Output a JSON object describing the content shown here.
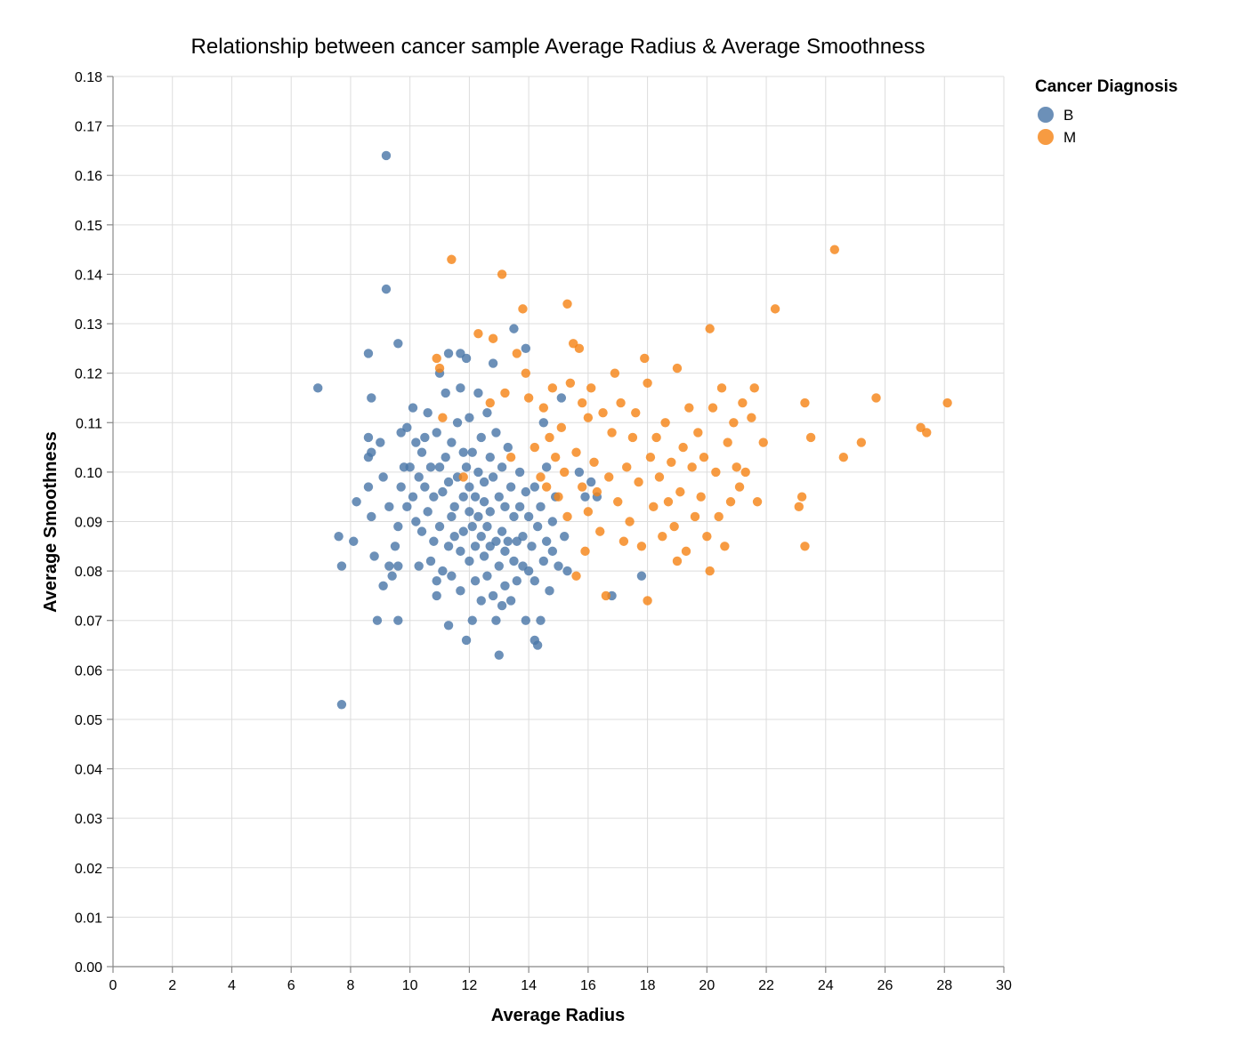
{
  "chart_data": {
    "type": "scatter",
    "title": "Relationship between cancer sample Average Radius & Average Smoothness",
    "xlabel": "Average Radius",
    "ylabel": "Average Smoothness",
    "xlim": [
      0,
      30
    ],
    "ylim": [
      0,
      0.18
    ],
    "x_ticks": [
      0,
      2,
      4,
      6,
      8,
      10,
      12,
      14,
      16,
      18,
      20,
      22,
      24,
      26,
      28,
      30
    ],
    "y_ticks": [
      0.0,
      0.01,
      0.02,
      0.03,
      0.04,
      0.05,
      0.06,
      0.07,
      0.08,
      0.09,
      0.1,
      0.11,
      0.12,
      0.13,
      0.14,
      0.15,
      0.16,
      0.17,
      0.18
    ],
    "y_tick_decimals": 2,
    "grid": true,
    "legend": {
      "title": "Cancer Diagnosis",
      "placement": "top-right"
    },
    "series": [
      {
        "name": "B",
        "color": "#4c78a8",
        "points": [
          [
            9.2,
            0.164
          ],
          [
            9.2,
            0.137
          ],
          [
            7.7,
            0.053
          ],
          [
            6.9,
            0.117
          ],
          [
            9.6,
            0.126
          ],
          [
            8.6,
            0.124
          ],
          [
            8.7,
            0.115
          ],
          [
            7.6,
            0.087
          ],
          [
            7.7,
            0.081
          ],
          [
            8.1,
            0.086
          ],
          [
            8.9,
            0.07
          ],
          [
            9.6,
            0.07
          ],
          [
            8.8,
            0.083
          ],
          [
            9.1,
            0.077
          ],
          [
            8.2,
            0.094
          ],
          [
            8.6,
            0.097
          ],
          [
            8.6,
            0.103
          ],
          [
            8.6,
            0.107
          ],
          [
            8.7,
            0.104
          ],
          [
            8.7,
            0.091
          ],
          [
            9.0,
            0.106
          ],
          [
            9.1,
            0.099
          ],
          [
            9.3,
            0.093
          ],
          [
            9.3,
            0.081
          ],
          [
            9.4,
            0.079
          ],
          [
            9.5,
            0.085
          ],
          [
            9.6,
            0.089
          ],
          [
            9.6,
            0.081
          ],
          [
            9.7,
            0.097
          ],
          [
            9.7,
            0.108
          ],
          [
            9.8,
            0.101
          ],
          [
            9.9,
            0.093
          ],
          [
            9.9,
            0.109
          ],
          [
            10.0,
            0.101
          ],
          [
            10.1,
            0.095
          ],
          [
            10.1,
            0.113
          ],
          [
            10.2,
            0.106
          ],
          [
            10.2,
            0.09
          ],
          [
            10.3,
            0.081
          ],
          [
            10.3,
            0.099
          ],
          [
            10.4,
            0.104
          ],
          [
            10.4,
            0.088
          ],
          [
            10.5,
            0.097
          ],
          [
            10.5,
            0.107
          ],
          [
            10.6,
            0.112
          ],
          [
            10.6,
            0.092
          ],
          [
            10.7,
            0.082
          ],
          [
            10.7,
            0.101
          ],
          [
            10.8,
            0.095
          ],
          [
            10.8,
            0.086
          ],
          [
            10.9,
            0.078
          ],
          [
            10.9,
            0.075
          ],
          [
            10.9,
            0.108
          ],
          [
            11.0,
            0.101
          ],
          [
            11.0,
            0.12
          ],
          [
            11.0,
            0.089
          ],
          [
            11.1,
            0.096
          ],
          [
            11.1,
            0.08
          ],
          [
            11.2,
            0.116
          ],
          [
            11.2,
            0.103
          ],
          [
            11.3,
            0.069
          ],
          [
            11.3,
            0.085
          ],
          [
            11.3,
            0.098
          ],
          [
            11.3,
            0.124
          ],
          [
            11.4,
            0.091
          ],
          [
            11.4,
            0.079
          ],
          [
            11.4,
            0.106
          ],
          [
            11.5,
            0.093
          ],
          [
            11.5,
            0.087
          ],
          [
            11.6,
            0.11
          ],
          [
            11.6,
            0.099
          ],
          [
            11.7,
            0.084
          ],
          [
            11.7,
            0.076
          ],
          [
            11.7,
            0.117
          ],
          [
            11.7,
            0.124
          ],
          [
            11.8,
            0.095
          ],
          [
            11.8,
            0.104
          ],
          [
            11.8,
            0.088
          ],
          [
            11.9,
            0.066
          ],
          [
            11.9,
            0.123
          ],
          [
            11.9,
            0.101
          ],
          [
            12.0,
            0.092
          ],
          [
            12.0,
            0.082
          ],
          [
            12.0,
            0.097
          ],
          [
            12.0,
            0.111
          ],
          [
            12.1,
            0.07
          ],
          [
            12.1,
            0.089
          ],
          [
            12.1,
            0.104
          ],
          [
            12.2,
            0.085
          ],
          [
            12.2,
            0.095
          ],
          [
            12.2,
            0.078
          ],
          [
            12.3,
            0.116
          ],
          [
            12.3,
            0.1
          ],
          [
            12.3,
            0.091
          ],
          [
            12.4,
            0.087
          ],
          [
            12.4,
            0.074
          ],
          [
            12.4,
            0.107
          ],
          [
            12.5,
            0.098
          ],
          [
            12.5,
            0.083
          ],
          [
            12.5,
            0.094
          ],
          [
            12.6,
            0.089
          ],
          [
            12.6,
            0.112
          ],
          [
            12.6,
            0.079
          ],
          [
            12.7,
            0.103
          ],
          [
            12.7,
            0.085
          ],
          [
            12.7,
            0.092
          ],
          [
            12.8,
            0.075
          ],
          [
            12.8,
            0.099
          ],
          [
            12.8,
            0.122
          ],
          [
            12.9,
            0.086
          ],
          [
            12.9,
            0.07
          ],
          [
            12.9,
            0.108
          ],
          [
            13.0,
            0.063
          ],
          [
            13.0,
            0.081
          ],
          [
            13.0,
            0.095
          ],
          [
            13.1,
            0.088
          ],
          [
            13.1,
            0.073
          ],
          [
            13.1,
            0.101
          ],
          [
            13.2,
            0.084
          ],
          [
            13.2,
            0.077
          ],
          [
            13.2,
            0.093
          ],
          [
            13.3,
            0.105
          ],
          [
            13.3,
            0.086
          ],
          [
            13.4,
            0.074
          ],
          [
            13.4,
            0.097
          ],
          [
            13.5,
            0.129
          ],
          [
            13.5,
            0.082
          ],
          [
            13.5,
            0.091
          ],
          [
            13.6,
            0.086
          ],
          [
            13.6,
            0.078
          ],
          [
            13.7,
            0.1
          ],
          [
            13.7,
            0.093
          ],
          [
            13.8,
            0.081
          ],
          [
            13.8,
            0.087
          ],
          [
            13.9,
            0.07
          ],
          [
            13.9,
            0.125
          ],
          [
            13.9,
            0.096
          ],
          [
            14.0,
            0.08
          ],
          [
            14.0,
            0.091
          ],
          [
            14.1,
            0.085
          ],
          [
            14.2,
            0.066
          ],
          [
            14.2,
            0.097
          ],
          [
            14.2,
            0.078
          ],
          [
            14.3,
            0.065
          ],
          [
            14.3,
            0.089
          ],
          [
            14.4,
            0.07
          ],
          [
            14.4,
            0.093
          ],
          [
            14.5,
            0.082
          ],
          [
            14.5,
            0.11
          ],
          [
            14.6,
            0.086
          ],
          [
            14.6,
            0.101
          ],
          [
            14.7,
            0.076
          ],
          [
            14.8,
            0.09
          ],
          [
            14.8,
            0.084
          ],
          [
            14.9,
            0.095
          ],
          [
            15.0,
            0.081
          ],
          [
            15.1,
            0.115
          ],
          [
            15.2,
            0.087
          ],
          [
            15.3,
            0.08
          ],
          [
            15.7,
            0.1
          ],
          [
            15.9,
            0.095
          ],
          [
            16.1,
            0.098
          ],
          [
            16.3,
            0.095
          ],
          [
            16.8,
            0.075
          ],
          [
            17.8,
            0.079
          ]
        ]
      },
      {
        "name": "M",
        "color": "#f58518",
        "points": [
          [
            11.4,
            0.143
          ],
          [
            10.9,
            0.123
          ],
          [
            11.0,
            0.121
          ],
          [
            11.1,
            0.111
          ],
          [
            11.8,
            0.099
          ],
          [
            12.3,
            0.128
          ],
          [
            12.7,
            0.114
          ],
          [
            12.8,
            0.127
          ],
          [
            13.1,
            0.14
          ],
          [
            13.2,
            0.116
          ],
          [
            13.4,
            0.103
          ],
          [
            13.6,
            0.124
          ],
          [
            13.8,
            0.133
          ],
          [
            13.9,
            0.12
          ],
          [
            14.0,
            0.115
          ],
          [
            14.2,
            0.105
          ],
          [
            14.4,
            0.099
          ],
          [
            14.5,
            0.113
          ],
          [
            14.6,
            0.097
          ],
          [
            14.7,
            0.107
          ],
          [
            14.8,
            0.117
          ],
          [
            14.9,
            0.103
          ],
          [
            15.0,
            0.095
          ],
          [
            15.1,
            0.109
          ],
          [
            15.2,
            0.1
          ],
          [
            15.3,
            0.134
          ],
          [
            15.3,
            0.091
          ],
          [
            15.4,
            0.118
          ],
          [
            15.5,
            0.126
          ],
          [
            15.6,
            0.104
          ],
          [
            15.6,
            0.079
          ],
          [
            15.7,
            0.125
          ],
          [
            15.8,
            0.114
          ],
          [
            15.8,
            0.097
          ],
          [
            15.9,
            0.084
          ],
          [
            16.0,
            0.111
          ],
          [
            16.0,
            0.092
          ],
          [
            16.1,
            0.117
          ],
          [
            16.2,
            0.102
          ],
          [
            16.3,
            0.096
          ],
          [
            16.4,
            0.088
          ],
          [
            16.5,
            0.112
          ],
          [
            16.6,
            0.075
          ],
          [
            16.7,
            0.099
          ],
          [
            16.8,
            0.108
          ],
          [
            16.9,
            0.12
          ],
          [
            17.0,
            0.094
          ],
          [
            17.1,
            0.114
          ],
          [
            17.2,
            0.086
          ],
          [
            17.3,
            0.101
          ],
          [
            17.4,
            0.09
          ],
          [
            17.5,
            0.107
          ],
          [
            17.6,
            0.112
          ],
          [
            17.7,
            0.098
          ],
          [
            17.8,
            0.085
          ],
          [
            17.9,
            0.123
          ],
          [
            18.0,
            0.074
          ],
          [
            18.0,
            0.118
          ],
          [
            18.1,
            0.103
          ],
          [
            18.2,
            0.093
          ],
          [
            18.3,
            0.107
          ],
          [
            18.4,
            0.099
          ],
          [
            18.5,
            0.087
          ],
          [
            18.6,
            0.11
          ],
          [
            18.7,
            0.094
          ],
          [
            18.8,
            0.102
          ],
          [
            18.9,
            0.089
          ],
          [
            19.0,
            0.082
          ],
          [
            19.0,
            0.121
          ],
          [
            19.1,
            0.096
          ],
          [
            19.2,
            0.105
          ],
          [
            19.3,
            0.084
          ],
          [
            19.4,
            0.113
          ],
          [
            19.5,
            0.101
          ],
          [
            19.6,
            0.091
          ],
          [
            19.7,
            0.108
          ],
          [
            19.8,
            0.095
          ],
          [
            19.9,
            0.103
          ],
          [
            20.0,
            0.087
          ],
          [
            20.1,
            0.129
          ],
          [
            20.1,
            0.08
          ],
          [
            20.2,
            0.113
          ],
          [
            20.3,
            0.1
          ],
          [
            20.4,
            0.091
          ],
          [
            20.5,
            0.117
          ],
          [
            20.6,
            0.085
          ],
          [
            20.7,
            0.106
          ],
          [
            20.8,
            0.094
          ],
          [
            20.9,
            0.11
          ],
          [
            21.0,
            0.101
          ],
          [
            21.1,
            0.097
          ],
          [
            21.2,
            0.114
          ],
          [
            21.3,
            0.1
          ],
          [
            21.5,
            0.111
          ],
          [
            21.6,
            0.117
          ],
          [
            21.7,
            0.094
          ],
          [
            21.9,
            0.106
          ],
          [
            22.3,
            0.133
          ],
          [
            23.1,
            0.093
          ],
          [
            23.2,
            0.095
          ],
          [
            23.3,
            0.085
          ],
          [
            23.3,
            0.114
          ],
          [
            23.5,
            0.107
          ],
          [
            24.3,
            0.145
          ],
          [
            24.6,
            0.103
          ],
          [
            25.2,
            0.106
          ],
          [
            25.7,
            0.115
          ],
          [
            27.2,
            0.109
          ],
          [
            27.4,
            0.108
          ],
          [
            28.1,
            0.114
          ]
        ]
      }
    ]
  }
}
